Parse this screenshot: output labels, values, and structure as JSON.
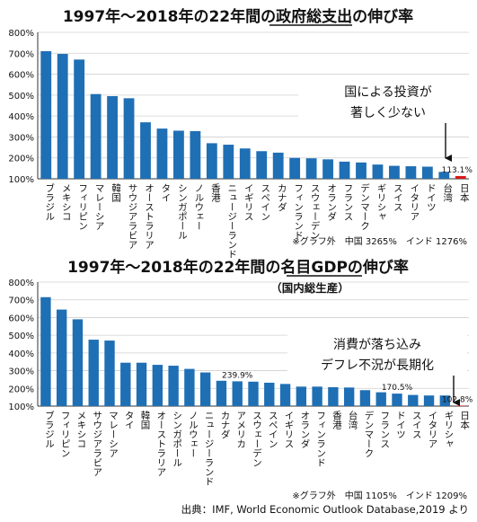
{
  "chart_data": [
    {
      "type": "bar",
      "title": "1997年～2018年の22年間の政府総支出の伸び率",
      "title_underlined": "政府総支出",
      "subtitle": "",
      "categories": [
        "ブラジル",
        "メキシコ",
        "フィリピン",
        "マレーシア",
        "韓国",
        "サウジアラビア",
        "オーストラリア",
        "タイ",
        "シンガポール",
        "ノルウェー",
        "香港",
        "ニュージーランド",
        "イギリス",
        "スペイン",
        "カナダ",
        "フィンランド",
        "スウェーデン",
        "オランダ",
        "フランス",
        "デンマーク",
        "ギリシャ",
        "スイス",
        "イタリア",
        "ドイツ",
        "台湾",
        "日本"
      ],
      "values": [
        710,
        697,
        670,
        505,
        495,
        485,
        370,
        340,
        330,
        328,
        270,
        263,
        245,
        232,
        225,
        200,
        198,
        193,
        182,
        178,
        168,
        162,
        160,
        158,
        133,
        113.1
      ],
      "highlight": {
        "category": "日本",
        "label": "113.1%",
        "color": "#d81818"
      },
      "data_labels": [
        {
          "category": "日本",
          "text": "113.1%"
        }
      ],
      "annotation": [
        "国による投資が",
        "著しく少ない"
      ],
      "footnote": "※グラフ外　中国 3265%　インド 1276%",
      "ylim": [
        100,
        800
      ],
      "yticks": [
        "100%",
        "200%",
        "300%",
        "400%",
        "500%",
        "600%",
        "700%",
        "800%"
      ],
      "bar_color": "#1f6fb5",
      "grid": true
    },
    {
      "type": "bar",
      "title": "1997年～2018年の22年間の名目GDPの伸び率",
      "title_underlined": "名目GDP",
      "subtitle": "（国内総生産）",
      "categories": [
        "ブラジル",
        "フィリピン",
        "メキシコ",
        "サウジアラビア",
        "マレーシア",
        "タイ",
        "韓国",
        "オーストラリア",
        "シンガポール",
        "ノルウェー",
        "ニュージーランド",
        "カナダ",
        "アメリカ",
        "スウェーデン",
        "スペイン",
        "イギリス",
        "オランダ",
        "フィンランド",
        "香港",
        "台湾",
        "デンマーク",
        "フランス",
        "ドイツ",
        "スイス",
        "イタリア",
        "ギリシャ",
        "日本"
      ],
      "values": [
        715,
        645,
        590,
        475,
        470,
        345,
        345,
        333,
        328,
        310,
        290,
        243,
        239.9,
        238,
        232,
        225,
        210,
        210,
        207,
        205,
        190,
        178,
        170.5,
        163,
        160,
        160,
        102.8
      ],
      "highlight": {
        "category": "日本",
        "label": "102.8%",
        "color": "#d81818"
      },
      "data_labels": [
        {
          "category": "アメリカ",
          "text": "239.9%"
        },
        {
          "category": "ドイツ",
          "text": "170.5%"
        },
        {
          "category": "日本",
          "text": "102.8%"
        }
      ],
      "annotation": [
        "消費が落ち込み",
        "デフレ不況が長期化"
      ],
      "footnote": "※グラフ外　中国 1105%　インド 1209%",
      "ylim": [
        100,
        800
      ],
      "yticks": [
        "100%",
        "200%",
        "300%",
        "400%",
        "500%",
        "600%",
        "700%",
        "800%"
      ],
      "bar_color": "#1f6fb5",
      "grid": true
    }
  ],
  "source": "出典：IMF, World Economic Outlook Database,2019 より"
}
